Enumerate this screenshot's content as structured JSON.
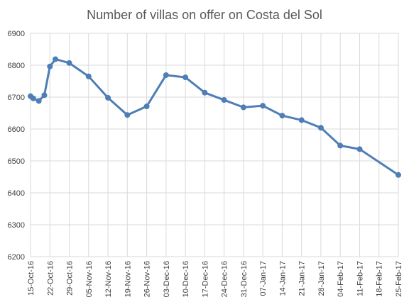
{
  "chart_data": {
    "type": "line",
    "title": "Number of villas on offer on Costa del Sol",
    "xlabel": "",
    "ylabel": "",
    "ylim": [
      6200,
      6900
    ],
    "yticks": [
      6200,
      6300,
      6400,
      6500,
      6600,
      6700,
      6800,
      6900
    ],
    "grid": true,
    "legend": "none",
    "x_tick_labels": [
      "15-Oct-16",
      "22-Oct-16",
      "29-Oct-16",
      "05-Nov-16",
      "12-Nov-16",
      "19-Nov-16",
      "26-Nov-16",
      "03-Dec-16",
      "10-Dec-16",
      "17-Dec-16",
      "24-Dec-16",
      "31-Dec-16",
      "07-Jan-17",
      "14-Jan-17",
      "21-Jan-17",
      "28-Jan-17",
      "04-Feb-17",
      "11-Feb-17",
      "18-Feb-17",
      "25-Feb-17"
    ],
    "x_tick_dates": [
      "2016-10-15",
      "2016-10-22",
      "2016-10-29",
      "2016-11-05",
      "2016-11-12",
      "2016-11-19",
      "2016-11-26",
      "2016-12-03",
      "2016-12-10",
      "2016-12-17",
      "2016-12-24",
      "2016-12-31",
      "2017-01-07",
      "2017-01-14",
      "2017-01-21",
      "2017-01-28",
      "2017-02-04",
      "2017-02-11",
      "2017-02-18",
      "2017-02-25"
    ],
    "series": [
      {
        "color": "#4f7eb5",
        "points": [
          {
            "x": "2016-10-15",
            "y": 6703
          },
          {
            "x": "2016-10-16",
            "y": 6696
          },
          {
            "x": "2016-10-18",
            "y": 6688
          },
          {
            "x": "2016-10-20",
            "y": 6706
          },
          {
            "x": "2016-10-22",
            "y": 6796
          },
          {
            "x": "2016-10-24",
            "y": 6819
          },
          {
            "x": "2016-10-29",
            "y": 6807
          },
          {
            "x": "2016-11-05",
            "y": 6765
          },
          {
            "x": "2016-11-12",
            "y": 6698
          },
          {
            "x": "2016-11-19",
            "y": 6644
          },
          {
            "x": "2016-11-26",
            "y": 6671
          },
          {
            "x": "2016-12-03",
            "y": 6769
          },
          {
            "x": "2016-12-10",
            "y": 6762
          },
          {
            "x": "2016-12-17",
            "y": 6714
          },
          {
            "x": "2016-12-24",
            "y": 6691
          },
          {
            "x": "2016-12-31",
            "y": 6668
          },
          {
            "x": "2017-01-07",
            "y": 6673
          },
          {
            "x": "2017-01-14",
            "y": 6642
          },
          {
            "x": "2017-01-21",
            "y": 6628
          },
          {
            "x": "2017-01-28",
            "y": 6604
          },
          {
            "x": "2017-02-04",
            "y": 6548
          },
          {
            "x": "2017-02-11",
            "y": 6537
          },
          {
            "x": "2017-02-25",
            "y": 6456
          }
        ]
      }
    ]
  }
}
